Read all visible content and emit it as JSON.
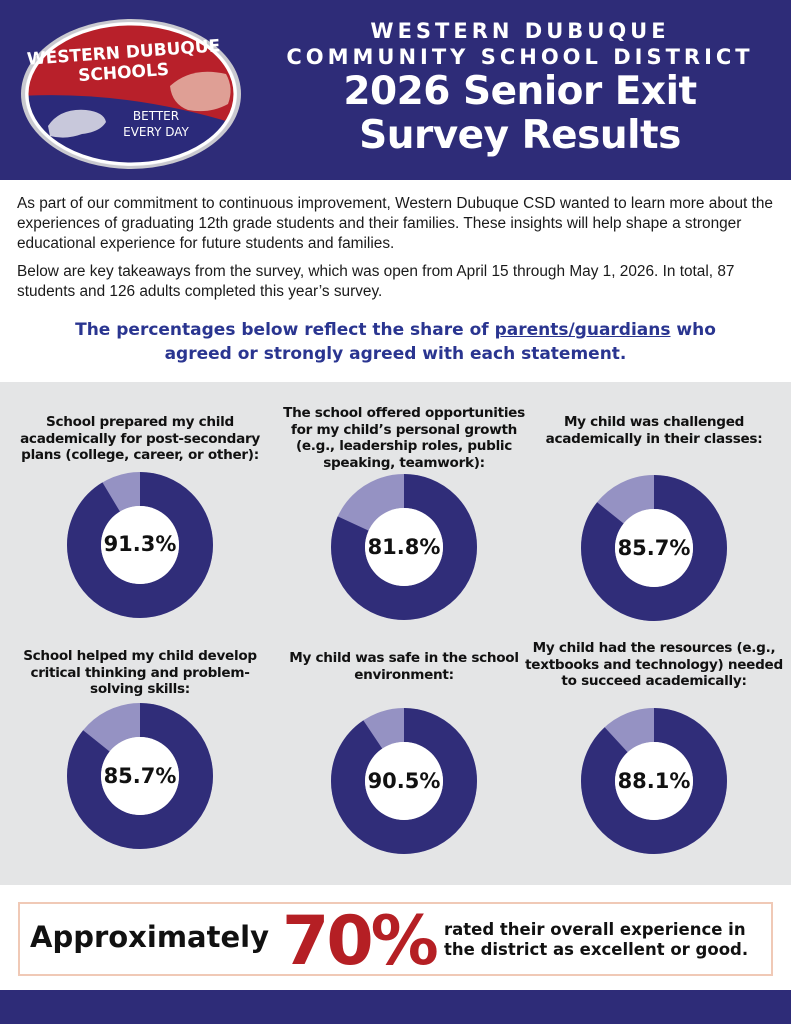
{
  "header": {
    "logo": {
      "line1": "WESTERN DUBUQUE",
      "line2": "SCHOOLS",
      "tagline1": "BETTER",
      "tagline2": "EVERY DAY"
    },
    "district_line1": "WESTERN DUBUQUE",
    "district_line2": "COMMUNITY SCHOOL DISTRICT",
    "title_line1": "2026 Senior Exit",
    "title_line2": "Survey Results"
  },
  "intro": {
    "paragraph1": "As part of our commitment to continuous improvement, Western Dubuque CSD wanted to learn more about the experiences of graduating 12th grade students and their families. These insights will help shape a stronger educational experience for future students and families.",
    "paragraph2": "Below are key takeaways from the survey, which was open from April 15 through May 1, 2026. In total, 87 students and 126 adults completed this year’s survey."
  },
  "callout": {
    "before": "The percentages below reflect the share of ",
    "highlight": "parents/guardians",
    "after": " who agreed or strongly agreed with each statement."
  },
  "colors": {
    "navy": "#2e2c78",
    "donut_primary": "#302d79",
    "donut_remainder": "#9592c3",
    "panel": "#e4e5e6",
    "accent_red": "#b51f24",
    "callout_blue": "#2a3590"
  },
  "stats": [
    {
      "question": "School prepared my child academically for post-secondary plans (college, career, or other):",
      "value": 91.3,
      "label": "91.3%"
    },
    {
      "question": "The school offered opportunities for my child’s personal growth (e.g., leadership roles, public speaking, teamwork):",
      "value": 81.8,
      "label": "81.8%"
    },
    {
      "question": "My child was challenged academically in their classes:",
      "value": 85.7,
      "label": "85.7%"
    },
    {
      "question": "School helped my child develop critical thinking and problem-solving skills:",
      "value": 85.7,
      "label": "85.7%"
    },
    {
      "question": "My child was safe in the school environment:",
      "value": 90.5,
      "label": "90.5%"
    },
    {
      "question": "My child had the resources (e.g., textbooks and technology) needed to succeed academically:",
      "value": 88.1,
      "label": "88.1%"
    }
  ],
  "overall": {
    "prefix": "Approximately",
    "percent": "70%",
    "text": "rated their overall experience in the district as excellent or good."
  }
}
